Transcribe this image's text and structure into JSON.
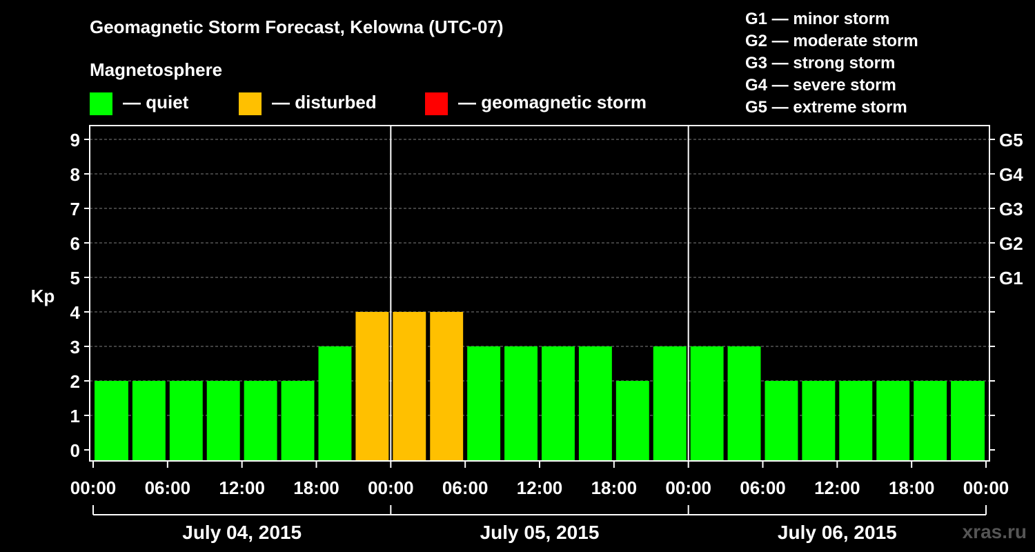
{
  "header": {
    "title": "Geomagnetic Storm Forecast, Kelowna (UTC-07)",
    "magnetosphere_label": "Magnetosphere"
  },
  "legend": [
    {
      "label": "— quiet",
      "color": "#00ff00"
    },
    {
      "label": "— disturbed",
      "color": "#ffc000"
    },
    {
      "label": "— geomagnetic storm",
      "color": "#ff0000"
    }
  ],
  "g_levels": [
    "G1 — minor storm",
    "G2 — moderate storm",
    "G3 — strong storm",
    "G4 — severe storm",
    "G5 — extreme storm"
  ],
  "watermark": "xras.ru",
  "chart_data": {
    "type": "bar",
    "ylabel": "Kp",
    "ylim": [
      0,
      9
    ],
    "yticks": [
      "0",
      "1",
      "2",
      "3",
      "4",
      "5",
      "6",
      "7",
      "8",
      "9"
    ],
    "right_ticks": [
      {
        "kp": 5,
        "label": "G1"
      },
      {
        "kp": 6,
        "label": "G2"
      },
      {
        "kp": 7,
        "label": "G3"
      },
      {
        "kp": 8,
        "label": "G4"
      },
      {
        "kp": 9,
        "label": "G5"
      }
    ],
    "grid": true,
    "xtick_labels": [
      "00:00",
      "06:00",
      "12:00",
      "18:00",
      "00:00",
      "06:00",
      "12:00",
      "18:00",
      "00:00",
      "06:00",
      "12:00",
      "18:00",
      "00:00"
    ],
    "days": [
      "July 04, 2015",
      "July 05, 2015",
      "July 06, 2015"
    ],
    "bar_interval_hours": 3,
    "values": [
      2,
      2,
      2,
      2,
      2,
      2,
      3,
      4,
      4,
      4,
      3,
      3,
      3,
      3,
      2,
      3,
      3,
      3,
      2,
      2,
      2,
      2,
      2,
      2
    ],
    "status": [
      "quiet",
      "quiet",
      "quiet",
      "quiet",
      "quiet",
      "quiet",
      "quiet",
      "disturbed",
      "disturbed",
      "disturbed",
      "quiet",
      "quiet",
      "quiet",
      "quiet",
      "quiet",
      "quiet",
      "quiet",
      "quiet",
      "quiet",
      "quiet",
      "quiet",
      "quiet",
      "quiet",
      "quiet"
    ],
    "colors": {
      "quiet": "#00ff00",
      "disturbed": "#ffc000",
      "storm": "#ff0000"
    }
  }
}
